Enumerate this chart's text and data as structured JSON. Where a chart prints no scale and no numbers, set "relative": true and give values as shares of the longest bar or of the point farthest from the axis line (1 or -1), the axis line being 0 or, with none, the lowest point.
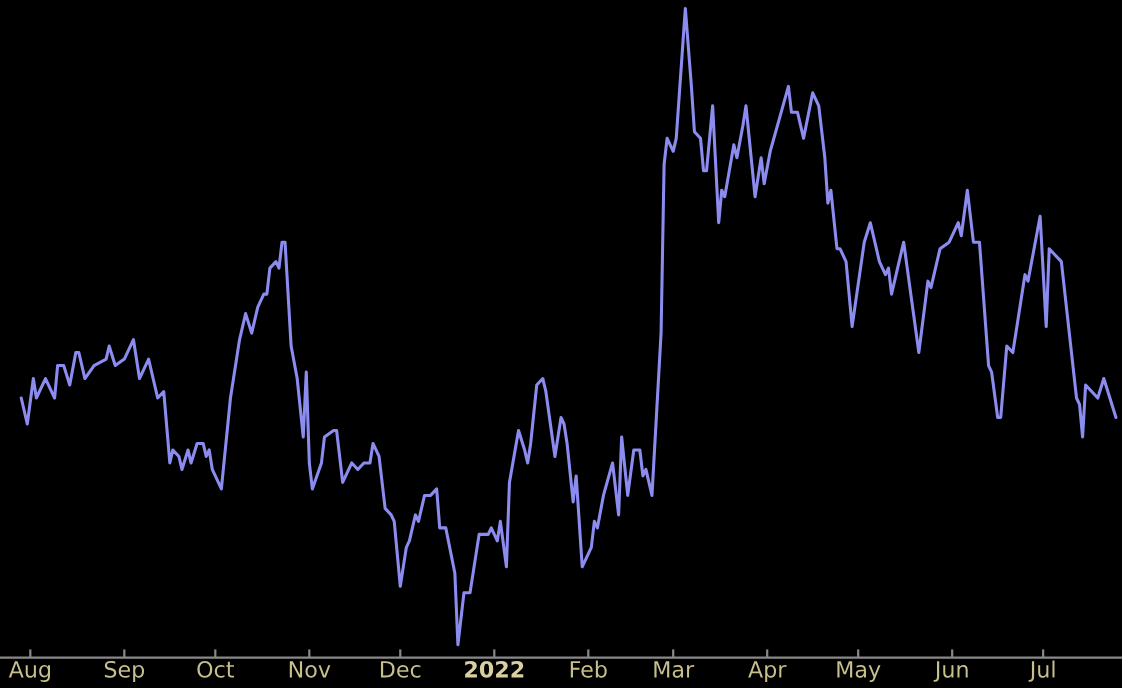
{
  "chart_data": {
    "type": "line",
    "relative": true,
    "tick_labels": "x",
    "xlim": [
      "2021-07-22",
      "2022-07-27"
    ],
    "xticks": [
      {
        "value": "2021-08-01",
        "label": "Aug"
      },
      {
        "value": "2021-09-01",
        "label": "Sep"
      },
      {
        "value": "2021-10-01",
        "label": "Oct"
      },
      {
        "value": "2021-11-01",
        "label": "Nov"
      },
      {
        "value": "2021-12-01",
        "label": "Dec"
      },
      {
        "value": "2022-01-01",
        "label": "2022"
      },
      {
        "value": "2022-02-01",
        "label": "Feb"
      },
      {
        "value": "2022-03-01",
        "label": "Mar"
      },
      {
        "value": "2022-04-01",
        "label": "Apr"
      },
      {
        "value": "2022-05-01",
        "label": "May"
      },
      {
        "value": "2022-06-01",
        "label": "Jun"
      },
      {
        "value": "2022-07-01",
        "label": "Jul"
      }
    ],
    "series": [
      {
        "color": "#8c8cf0",
        "x": [
          "2021-07-29",
          "2021-07-31",
          "2021-08-02",
          "2021-08-03",
          "2021-08-06",
          "2021-08-09",
          "2021-08-10",
          "2021-08-12",
          "2021-08-14",
          "2021-08-16",
          "2021-08-17",
          "2021-08-19",
          "2021-08-22",
          "2021-08-26",
          "2021-08-27",
          "2021-08-29",
          "2021-09-01",
          "2021-09-04",
          "2021-09-06",
          "2021-09-09",
          "2021-09-12",
          "2021-09-14",
          "2021-09-16",
          "2021-09-17",
          "2021-09-19",
          "2021-09-20",
          "2021-09-22",
          "2021-09-23",
          "2021-09-25",
          "2021-09-27",
          "2021-09-28",
          "2021-09-29",
          "2021-09-30",
          "2021-10-03",
          "2021-10-06",
          "2021-10-09",
          "2021-10-11",
          "2021-10-13",
          "2021-10-15",
          "2021-10-17",
          "2021-10-18",
          "2021-10-19",
          "2021-10-21",
          "2021-10-22",
          "2021-10-23",
          "2021-10-24",
          "2021-10-26",
          "2021-10-28",
          "2021-10-30",
          "2021-10-31",
          "2021-11-01",
          "2021-11-02",
          "2021-11-05",
          "2021-11-06",
          "2021-11-09",
          "2021-11-10",
          "2021-11-12",
          "2021-11-14",
          "2021-11-15",
          "2021-11-17",
          "2021-11-19",
          "2021-11-21",
          "2021-11-22",
          "2021-11-24",
          "2021-11-26",
          "2021-11-28",
          "2021-11-29",
          "2021-12-01",
          "2021-12-03",
          "2021-12-04",
          "2021-12-06",
          "2021-12-07",
          "2021-12-09",
          "2021-12-11",
          "2021-12-13",
          "2021-12-14",
          "2021-12-16",
          "2021-12-19",
          "2021-12-20",
          "2021-12-22",
          "2021-12-24",
          "2021-12-27",
          "2021-12-30",
          "2021-12-31",
          "2022-01-02",
          "2022-01-03",
          "2022-01-05",
          "2022-01-06",
          "2022-01-09",
          "2022-01-11",
          "2022-01-12",
          "2022-01-13",
          "2022-01-15",
          "2022-01-17",
          "2022-01-18",
          "2022-01-21",
          "2022-01-23",
          "2022-01-24",
          "2022-01-25",
          "2022-01-27",
          "2022-01-28",
          "2022-01-30",
          "2022-02-02",
          "2022-02-03",
          "2022-02-04",
          "2022-02-06",
          "2022-02-09",
          "2022-02-11",
          "2022-02-12",
          "2022-02-14",
          "2022-02-16",
          "2022-02-18",
          "2022-02-19",
          "2022-02-20",
          "2022-02-22",
          "2022-02-25",
          "2022-02-26",
          "2022-02-27",
          "2022-03-01",
          "2022-03-02",
          "2022-03-05",
          "2022-03-07",
          "2022-03-08",
          "2022-03-10",
          "2022-03-11",
          "2022-03-12",
          "2022-03-14",
          "2022-03-16",
          "2022-03-17",
          "2022-03-18",
          "2022-03-21",
          "2022-03-22",
          "2022-03-24",
          "2022-03-25",
          "2022-03-28",
          "2022-03-30",
          "2022-03-31",
          "2022-04-02",
          "2022-04-05",
          "2022-04-08",
          "2022-04-09",
          "2022-04-11",
          "2022-04-13",
          "2022-04-16",
          "2022-04-18",
          "2022-04-20",
          "2022-04-21",
          "2022-04-22",
          "2022-04-24",
          "2022-04-25",
          "2022-04-27",
          "2022-04-29",
          "2022-05-03",
          "2022-05-05",
          "2022-05-08",
          "2022-05-10",
          "2022-05-11",
          "2022-05-12",
          "2022-05-16",
          "2022-05-21",
          "2022-05-24",
          "2022-05-25",
          "2022-05-28",
          "2022-05-31",
          "2022-06-03",
          "2022-06-04",
          "2022-06-06",
          "2022-06-08",
          "2022-06-10",
          "2022-06-13",
          "2022-06-14",
          "2022-06-16",
          "2022-06-17",
          "2022-06-19",
          "2022-06-21",
          "2022-06-25",
          "2022-06-26",
          "2022-06-30",
          "2022-07-02",
          "2022-07-03",
          "2022-07-05",
          "2022-07-07",
          "2022-07-12",
          "2022-07-13",
          "2022-07-14",
          "2022-07-15",
          "2022-07-19",
          "2022-07-21",
          "2022-07-25"
        ],
        "values": [
          0.4,
          0.36,
          0.43,
          0.4,
          0.43,
          0.4,
          0.45,
          0.45,
          0.42,
          0.47,
          0.47,
          0.43,
          0.45,
          0.46,
          0.48,
          0.45,
          0.46,
          0.49,
          0.43,
          0.46,
          0.4,
          0.41,
          0.3,
          0.32,
          0.31,
          0.29,
          0.32,
          0.3,
          0.33,
          0.33,
          0.31,
          0.32,
          0.29,
          0.26,
          0.4,
          0.49,
          0.53,
          0.5,
          0.54,
          0.56,
          0.56,
          0.6,
          0.61,
          0.6,
          0.64,
          0.64,
          0.48,
          0.43,
          0.34,
          0.44,
          0.3,
          0.26,
          0.3,
          0.34,
          0.35,
          0.35,
          0.27,
          0.29,
          0.3,
          0.29,
          0.3,
          0.3,
          0.33,
          0.31,
          0.23,
          0.22,
          0.21,
          0.11,
          0.17,
          0.18,
          0.22,
          0.21,
          0.25,
          0.25,
          0.26,
          0.2,
          0.2,
          0.13,
          0.02,
          0.1,
          0.1,
          0.19,
          0.19,
          0.2,
          0.18,
          0.21,
          0.14,
          0.27,
          0.35,
          0.32,
          0.3,
          0.33,
          0.42,
          0.43,
          0.41,
          0.31,
          0.37,
          0.36,
          0.33,
          0.24,
          0.28,
          0.14,
          0.17,
          0.21,
          0.2,
          0.25,
          0.3,
          0.22,
          0.34,
          0.25,
          0.32,
          0.32,
          0.28,
          0.29,
          0.25,
          0.5,
          0.76,
          0.8,
          0.78,
          0.8,
          1,
          0.88,
          0.81,
          0.8,
          0.75,
          0.75,
          0.85,
          0.67,
          0.72,
          0.71,
          0.79,
          0.77,
          0.82,
          0.85,
          0.71,
          0.77,
          0.73,
          0.78,
          0.83,
          0.88,
          0.84,
          0.84,
          0.8,
          0.87,
          0.85,
          0.77,
          0.7,
          0.72,
          0.63,
          0.63,
          0.61,
          0.51,
          0.64,
          0.67,
          0.61,
          0.59,
          0.6,
          0.56,
          0.64,
          0.47,
          0.58,
          0.57,
          0.63,
          0.64,
          0.67,
          0.65,
          0.72,
          0.64,
          0.64,
          0.45,
          0.44,
          0.37,
          0.37,
          0.48,
          0.47,
          0.59,
          0.58,
          0.68,
          0.51,
          0.63,
          0.62,
          0.61,
          0.4,
          0.39,
          0.34,
          0.42,
          0.4,
          0.43,
          0.37
        ]
      }
    ]
  }
}
